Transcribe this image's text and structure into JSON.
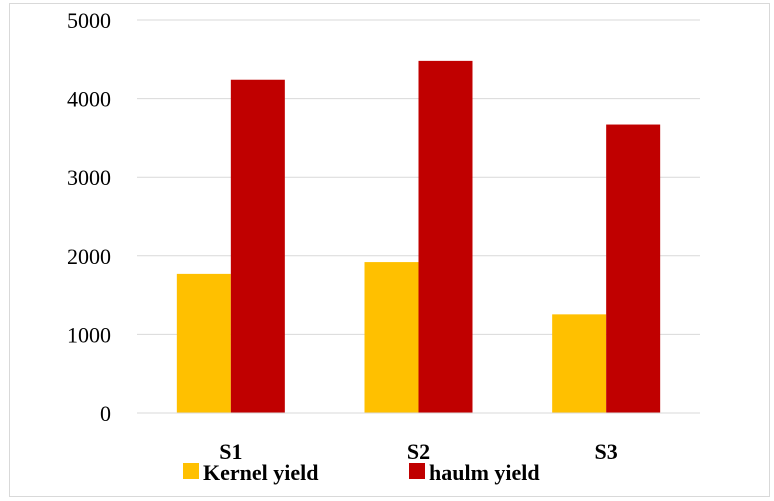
{
  "chart_data": {
    "type": "bar",
    "title": "",
    "xlabel": "",
    "ylabel": "",
    "categories": [
      "S1",
      "S2",
      "S3"
    ],
    "series": [
      {
        "name": "Kernel yield",
        "values": [
          1770,
          1920,
          1255
        ],
        "color": "#FFC000"
      },
      {
        "name": "haulm yield",
        "values": [
          4240,
          4480,
          3670
        ],
        "color": "#C00000"
      }
    ],
    "ylim": [
      0,
      5000
    ],
    "yticks": [
      0,
      1000,
      2000,
      3000,
      4000,
      5000
    ],
    "grid": true,
    "legend": "bottom"
  }
}
